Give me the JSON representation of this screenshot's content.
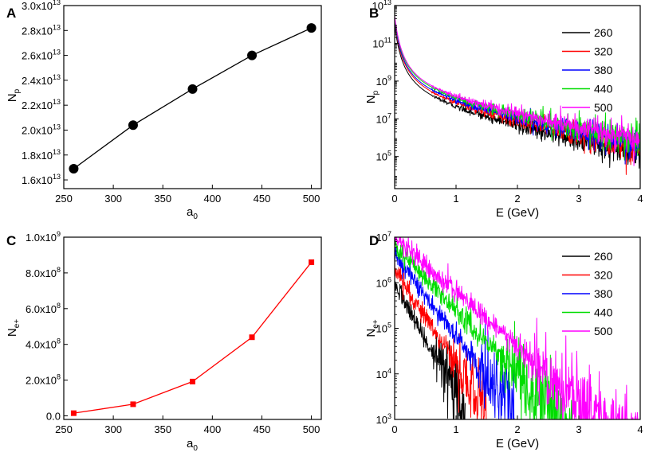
{
  "chart_data": [
    {
      "panel": "A",
      "type": "line",
      "marker": "circle",
      "color": "#000000",
      "x": [
        260,
        320,
        380,
        440,
        500
      ],
      "y": [
        16900000000000.0,
        20400000000000.0,
        23300000000000.0,
        26000000000000.0,
        28200000000000.0
      ],
      "xlim": [
        250,
        510
      ],
      "ylim": [
        15300000000000.0,
        30000000000000.0
      ],
      "xticks": [
        250,
        300,
        350,
        400,
        450,
        500
      ],
      "yticks": [
        16000000000000.0,
        18000000000000.0,
        20000000000000.0,
        22000000000000.0,
        24000000000000.0,
        26000000000000.0,
        28000000000000.0,
        30000000000000.0
      ],
      "ytick_mant": [
        "1.6x10",
        "1.8x10",
        "2.0x10",
        "2.2x10",
        "2.4x10",
        "2.6x10",
        "2.8x10",
        "3.0x10"
      ],
      "ytick_exp": "13",
      "xlabel": "a",
      "xlabel_sub": "0",
      "ylabel": "N",
      "ylabel_sub": "p"
    },
    {
      "panel": "B",
      "type": "line",
      "yscale": "log",
      "xlim": [
        0,
        4
      ],
      "ylim": [
        2000.0,
        10000000000000.0
      ],
      "xticks": [
        0,
        1,
        2,
        3,
        4
      ],
      "ytick_exps": [
        "5",
        "7",
        "9",
        "11",
        "13"
      ],
      "ytick_base": "10",
      "xlabel": "E (GeV)",
      "ylabel": "N",
      "ylabel_sub": "p",
      "legend_position": "top-right",
      "series": [
        {
          "name": "260",
          "color": "#000000",
          "y0": 1000000000000.0,
          "spectrum_params": [
            8.0,
            3.8,
            0.39,
            1.2,
            1.35
          ]
        },
        {
          "name": "320",
          "color": "#ff0000",
          "y0": 1300000000000.0,
          "spectrum_params": [
            8.0,
            3.6,
            0.41,
            1.25,
            1.35
          ]
        },
        {
          "name": "380",
          "color": "#0000ff",
          "y0": 1500000000000.0,
          "spectrum_params": [
            8.0,
            3.5,
            0.43,
            1.25,
            1.35
          ]
        },
        {
          "name": "440",
          "color": "#00dd00",
          "y0": 1800000000000.0,
          "spectrum_params": [
            8.0,
            3.45,
            0.44,
            1.25,
            1.4
          ]
        },
        {
          "name": "500",
          "color": "#ff00ff",
          "y0": 2000000000000.0,
          "spectrum_params": [
            8.0,
            3.4,
            0.45,
            1.2,
            1.4
          ]
        }
      ]
    },
    {
      "panel": "C",
      "type": "line",
      "marker": "square",
      "color": "#ff0000",
      "x": [
        260,
        320,
        380,
        440,
        500
      ],
      "y": [
        15000000.0,
        65000000.0,
        192000000.0,
        440000000.0,
        860000000.0
      ],
      "xlim": [
        250,
        510
      ],
      "ylim": [
        -20000000.0,
        1000000000.0
      ],
      "xticks": [
        250,
        300,
        350,
        400,
        450,
        500
      ],
      "yticks": [
        0,
        200000000.0,
        400000000.0,
        600000000.0,
        800000000.0,
        1000000000.0
      ],
      "ytick_mant": [
        "0.0",
        "2.0x10",
        "4.0x10",
        "6.0x10",
        "8.0x10",
        "1.0x10"
      ],
      "ytick_exp": [
        "",
        "8",
        "8",
        "8",
        "8",
        "9"
      ],
      "xlabel": "a",
      "xlabel_sub": "0",
      "ylabel": "N",
      "ylabel_sub": "e+"
    },
    {
      "panel": "D",
      "type": "line",
      "yscale": "log",
      "xlim": [
        0,
        4
      ],
      "ylim": [
        1000.0,
        10000000.0
      ],
      "xticks": [
        0,
        1,
        2,
        3,
        4
      ],
      "ytick_exps": [
        "3",
        "4",
        "5",
        "6",
        "7"
      ],
      "ytick_base": "10",
      "xlabel": "E (GeV)",
      "ylabel": "N",
      "ylabel_sub": "e+",
      "legend_position": "top-right",
      "series": [
        {
          "name": "260",
          "color": "#000000",
          "y0": 1000000.0,
          "decay": 2.5,
          "end": 1.15
        },
        {
          "name": "320",
          "color": "#ff0000",
          "y0": 2000000.0,
          "decay": 2.1,
          "end": 1.5
        },
        {
          "name": "380",
          "color": "#0000ff",
          "y0": 4000000.0,
          "decay": 1.75,
          "end": 1.95
        },
        {
          "name": "440",
          "color": "#00dd00",
          "y0": 7000000.0,
          "decay": 1.45,
          "end": 2.9
        },
        {
          "name": "500",
          "color": "#ff00ff",
          "y0": 10000000.0,
          "decay": 1.2,
          "end": 4.0
        }
      ]
    }
  ],
  "panel_labels": [
    "A",
    "B",
    "C",
    "D"
  ]
}
